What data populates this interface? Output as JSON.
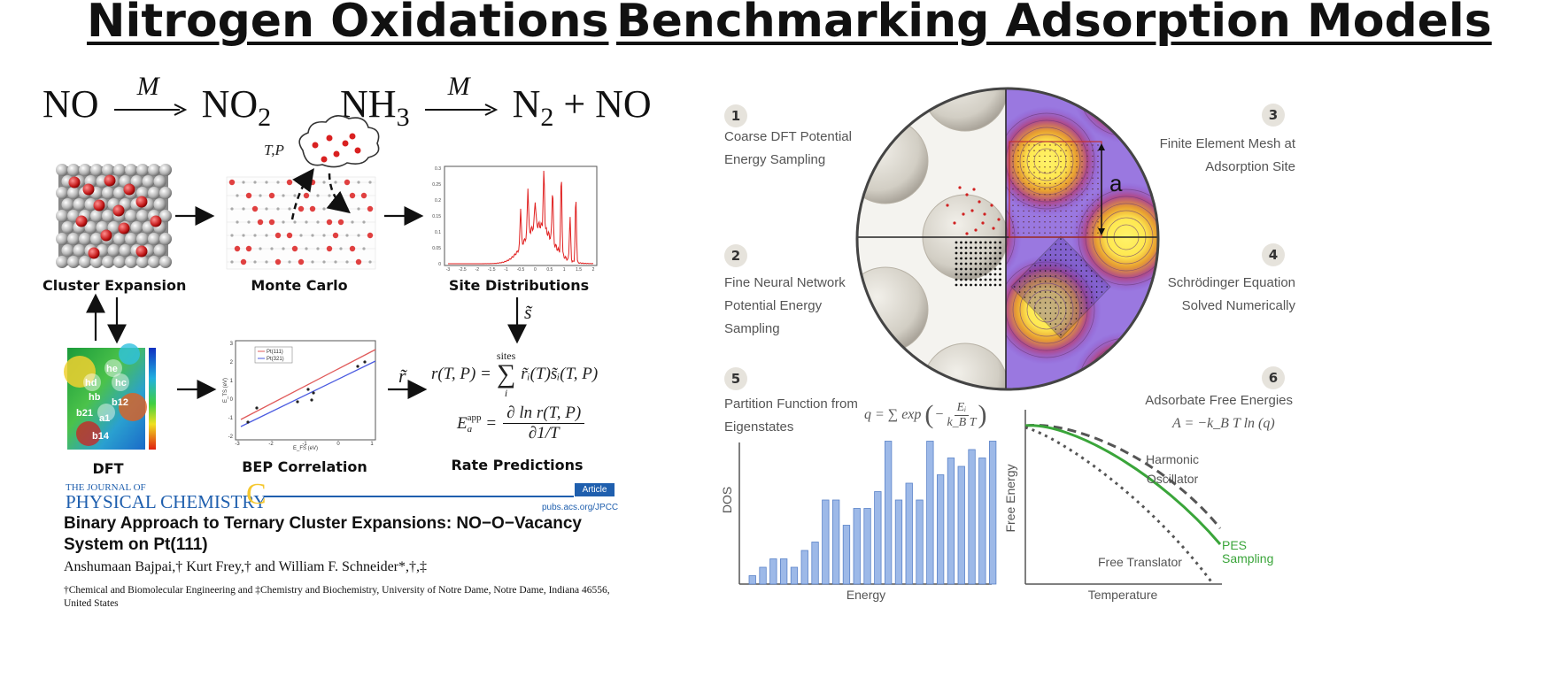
{
  "left": {
    "heading": "Nitrogen Oxidations",
    "reaction1": {
      "reactant": "NO",
      "catalyst": "M",
      "product": "NO",
      "product_sub": "2"
    },
    "reaction2": {
      "reactant": "NH",
      "reactant_sub": "3",
      "catalyst": "M",
      "product": "N",
      "product_sub": "2",
      "extra": "+ NO"
    },
    "tp_label": "T,P",
    "steps": [
      {
        "label": "Cluster Expansion"
      },
      {
        "label": "Monte Carlo"
      },
      {
        "label": "Site Distributions"
      },
      {
        "label": "DFT"
      },
      {
        "label": "BEP Correlation"
      },
      {
        "label": "Rate Predictions"
      }
    ],
    "s_tilde": "s̃",
    "r_tilde": "r̃",
    "dft_site_labels": [
      "he",
      "hd",
      "hc",
      "hb",
      "b21",
      "b12",
      "a1",
      "b14"
    ],
    "bep_legend": [
      "Pt(111)",
      "Pt(321)"
    ],
    "bep_xlabel": "E_FS (eV)",
    "bep_ylabel": "E_TS (eV)",
    "bep_xticks": [
      "-3",
      "-2",
      "-1",
      "0",
      "1"
    ],
    "bep_yticks": [
      "3",
      "2",
      "1",
      "0",
      "-1",
      "-2"
    ],
    "site_xticks": [
      "-3",
      "-2.5",
      "-2",
      "-1.5",
      "-1",
      "-0.5",
      "0",
      "0.5",
      "1",
      "1.5",
      "2"
    ],
    "site_yticks": [
      "0.3",
      "0.25",
      "0.2",
      "0.15",
      "0.1",
      "0.05",
      "0"
    ],
    "eq_rate": {
      "lhs": "r(T, P) =",
      "sum_top": "sites",
      "sum_bot": "i",
      "rhs": "r̃ᵢ(T)s̃ᵢ(T, P)"
    },
    "eq_energy": {
      "lhs": "E",
      "sup": "app",
      "sub": "a",
      "num": "∂ ln r(T, P)",
      "den": "∂1/T"
    },
    "paper": {
      "journal_top": "THE JOURNAL OF",
      "journal_main": "PHYSICAL CHEMISTRY",
      "journal_letter": "C",
      "badge": "Article",
      "url": "pubs.acs.org/JPCC",
      "title_line1": "Binary Approach to Ternary Cluster Expansions: NO−O−Vacancy",
      "title_line2": "System on Pt(111)",
      "authors": "Anshumaan Bajpai,† Kurt Frey,† and William F. Schneider*,†,‡",
      "affil_line1": "†Chemical and Biomolecular Engineering and ‡Chemistry and Biochemistry, University of Notre Dame, Notre Dame, Indiana 46556,",
      "affil_line2": "United States"
    }
  },
  "right": {
    "heading": "Benchmarking Adsorption Models",
    "steps": [
      {
        "num": "1",
        "lines": [
          "Coarse DFT Potential",
          "Energy Sampling"
        ]
      },
      {
        "num": "2",
        "lines": [
          "Fine Neural Network",
          "Potential Energy",
          "Sampling"
        ]
      },
      {
        "num": "3",
        "lines": [
          "Finite Element Mesh at",
          "Adsorption Site"
        ]
      },
      {
        "num": "4",
        "lines": [
          "Schrödinger Equation",
          "Solved Numerically"
        ]
      },
      {
        "num": "5",
        "lines": [
          "Partition Function from",
          "Eigenstates"
        ]
      },
      {
        "num": "6",
        "lines": [
          "Adsorbate Free Energies"
        ]
      }
    ],
    "lattice_label": "a",
    "eq_q": {
      "lhs": "q = ∑ exp",
      "num": "Eᵢ",
      "den": "k_B T"
    },
    "eq_a": "A = −k_B T ln (q)",
    "dos_chart": {
      "type": "bar",
      "xlabel": "Energy",
      "ylabel": "DOS",
      "values": [
        0.05,
        0.1,
        0.15,
        0.15,
        0.1,
        0.2,
        0.25,
        0.5,
        0.5,
        0.35,
        0.45,
        0.45,
        0.55,
        0.85,
        0.5,
        0.6,
        0.5,
        0.85,
        0.65,
        0.75,
        0.7,
        0.8,
        0.75,
        0.85
      ]
    },
    "fe_chart": {
      "type": "line",
      "xlabel": "Temperature",
      "ylabel": "Free Energy",
      "series": [
        {
          "name": "Harmonic Oscillator",
          "label_lines": [
            "Harmonic",
            "Oscillator"
          ],
          "color": "#555555",
          "style": "dashed"
        },
        {
          "name": "PES Sampling",
          "label_lines": [
            "PES",
            "Sampling"
          ],
          "color": "#3aa53a",
          "style": "solid"
        },
        {
          "name": "Free Translator",
          "label_lines": [
            "Free Translator"
          ],
          "color": "#555555",
          "style": "dotted"
        }
      ]
    }
  },
  "colors": {
    "green": "#3aa53a",
    "bar": "#9db9e8",
    "bar_edge": "#5a82c8",
    "red": "#d92020",
    "jpcc_blue": "#1f5fae"
  }
}
